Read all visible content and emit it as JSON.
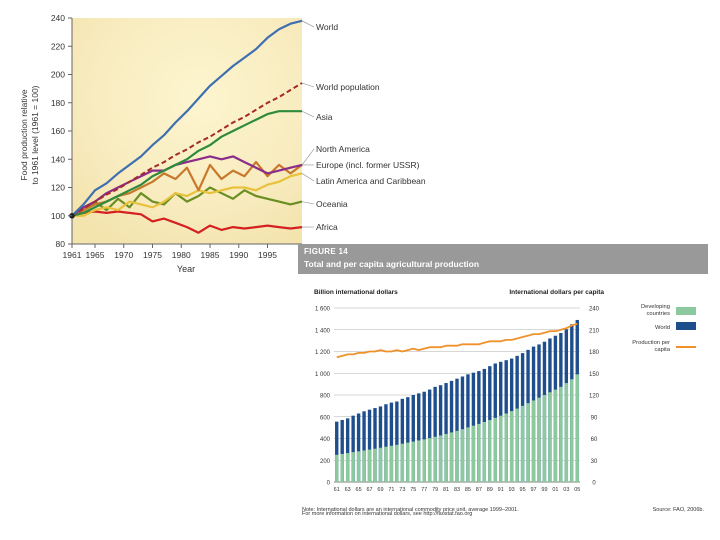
{
  "chart_data": [
    {
      "type": "line",
      "title": "",
      "xlabel": "Year",
      "ylabel_line1": "Food production relative",
      "ylabel_line2": "to 1961 level (1961 = 100)",
      "x": [
        1961,
        1963,
        1965,
        1967,
        1969,
        1971,
        1973,
        1975,
        1977,
        1979,
        1981,
        1983,
        1985,
        1987,
        1989,
        1991,
        1993,
        1995,
        1997,
        1999,
        2001
      ],
      "xlim": [
        1961,
        2001
      ],
      "ylim": [
        80,
        240
      ],
      "x_ticks": [
        {
          "value": 1961,
          "label": "1961"
        },
        {
          "value": 1965,
          "label": "1965"
        },
        {
          "value": 1970,
          "label": "1970"
        },
        {
          "value": 1975,
          "label": "1975"
        },
        {
          "value": 1980,
          "label": "1980"
        },
        {
          "value": 1985,
          "label": "1985"
        },
        {
          "value": 1990,
          "label": "1990"
        },
        {
          "value": 1995,
          "label": "1995"
        }
      ],
      "y_ticks": [
        80,
        100,
        120,
        140,
        160,
        180,
        200,
        220,
        240
      ],
      "series": [
        {
          "name": "World",
          "color": "#3f6fb0",
          "dashed": false,
          "values": [
            100,
            108,
            118,
            123,
            130,
            136,
            142,
            150,
            157,
            166,
            174,
            183,
            192,
            199,
            206,
            212,
            218,
            226,
            232,
            236,
            238
          ]
        },
        {
          "name": "World population",
          "color": "#a52a2a",
          "dashed": true,
          "values": [
            100,
            105,
            110,
            115,
            119,
            124,
            129,
            134,
            138,
            143,
            147,
            152,
            156,
            161,
            166,
            170,
            175,
            180,
            184,
            189,
            194
          ]
        },
        {
          "name": "Asia",
          "color": "#2e8b3c",
          "dashed": false,
          "values": [
            100,
            102,
            106,
            110,
            114,
            118,
            122,
            128,
            132,
            136,
            140,
            146,
            150,
            156,
            160,
            164,
            168,
            172,
            174,
            174,
            174
          ]
        },
        {
          "name": "North America",
          "color": "#c8782c",
          "dashed": false,
          "values": [
            100,
            104,
            108,
            110,
            114,
            116,
            120,
            124,
            130,
            126,
            134,
            118,
            136,
            126,
            132,
            128,
            138,
            128,
            136,
            130,
            136
          ]
        },
        {
          "name": "Europe (incl. former USSR)",
          "color": "#8a2c8a",
          "dashed": false,
          "values": [
            100,
            106,
            110,
            116,
            120,
            124,
            128,
            132,
            132,
            136,
            138,
            140,
            142,
            140,
            142,
            138,
            134,
            130,
            132,
            134,
            136
          ]
        },
        {
          "name": "Latin America and Caribbean",
          "color": "#e8c23c",
          "dashed": false,
          "values": [
            100,
            100,
            104,
            106,
            104,
            110,
            108,
            106,
            110,
            116,
            114,
            118,
            116,
            118,
            120,
            120,
            118,
            122,
            124,
            128,
            130
          ]
        },
        {
          "name": "Oceania",
          "color": "#6b8e23",
          "dashed": false,
          "values": [
            100,
            104,
            110,
            104,
            112,
            106,
            116,
            110,
            108,
            116,
            110,
            114,
            120,
            116,
            112,
            118,
            114,
            112,
            110,
            108,
            110
          ]
        },
        {
          "name": "Africa",
          "color": "#d42020",
          "dashed": false,
          "values": [
            100,
            102,
            103,
            102,
            103,
            102,
            101,
            96,
            98,
            95,
            92,
            88,
            93,
            90,
            92,
            91,
            92,
            93,
            92,
            91,
            92
          ]
        }
      ]
    },
    {
      "type": "bar",
      "figure_label": "FIGURE 14",
      "title": "Total and per capita agricultural production",
      "left_axis_title": "Billion international dollars",
      "right_axis_title": "International dollars per capita",
      "ylim_left": [
        0,
        1600
      ],
      "ylim_right": [
        0,
        240
      ],
      "y_ticks_left": [
        {
          "value": 0,
          "label": "0"
        },
        {
          "value": 200,
          "label": "200"
        },
        {
          "value": 400,
          "label": "400"
        },
        {
          "value": 600,
          "label": "600"
        },
        {
          "value": 800,
          "label": "800"
        },
        {
          "value": 1000,
          "label": "1 000"
        },
        {
          "value": 1200,
          "label": "1 200"
        },
        {
          "value": 1400,
          "label": "1 400"
        },
        {
          "value": 1600,
          "label": "1 600"
        }
      ],
      "y_ticks_right": [
        0,
        30,
        60,
        90,
        120,
        150,
        180,
        210,
        240
      ],
      "categories": [
        "61",
        "62",
        "63",
        "64",
        "65",
        "66",
        "67",
        "68",
        "69",
        "70",
        "71",
        "72",
        "73",
        "74",
        "75",
        "76",
        "77",
        "78",
        "79",
        "80",
        "81",
        "82",
        "83",
        "84",
        "85",
        "86",
        "87",
        "88",
        "89",
        "90",
        "91",
        "92",
        "93",
        "94",
        "95",
        "96",
        "97",
        "98",
        "99",
        "00",
        "01",
        "02",
        "03",
        "04",
        "05"
      ],
      "x_tick_labels": [
        "61",
        "63",
        "65",
        "67",
        "69",
        "71",
        "73",
        "75",
        "77",
        "79",
        "81",
        "83",
        "85",
        "87",
        "89",
        "91",
        "93",
        "95",
        "97",
        "99",
        "01",
        "03",
        "05"
      ],
      "series": [
        {
          "name": "World",
          "color": "#1f4e8c",
          "axis": "left",
          "kind": "bar",
          "values": [
            555,
            570,
            585,
            610,
            630,
            650,
            665,
            680,
            695,
            715,
            730,
            740,
            765,
            780,
            800,
            815,
            830,
            850,
            875,
            890,
            910,
            930,
            950,
            970,
            990,
            1005,
            1020,
            1040,
            1065,
            1090,
            1105,
            1120,
            1135,
            1160,
            1185,
            1215,
            1245,
            1265,
            1290,
            1320,
            1345,
            1370,
            1405,
            1450,
            1490
          ]
        },
        {
          "name": "Developing countries",
          "color": "#8cc99f",
          "axis": "left",
          "kind": "bar",
          "values": [
            250,
            258,
            266,
            275,
            282,
            290,
            298,
            306,
            315,
            324,
            333,
            342,
            352,
            362,
            372,
            382,
            392,
            404,
            416,
            428,
            442,
            456,
            470,
            486,
            502,
            518,
            534,
            552,
            570,
            590,
            610,
            630,
            652,
            675,
            700,
            725,
            750,
            775,
            800,
            825,
            850,
            875,
            910,
            945,
            990
          ]
        },
        {
          "name": "Production per capita",
          "color": "#f0922b",
          "axis": "right",
          "kind": "line",
          "values": [
            172,
            174,
            176,
            176,
            178,
            178,
            180,
            180,
            182,
            180,
            180,
            182,
            180,
            182,
            184,
            182,
            184,
            186,
            186,
            186,
            188,
            188,
            188,
            190,
            190,
            190,
            190,
            192,
            194,
            194,
            194,
            196,
            196,
            198,
            200,
            202,
            204,
            204,
            206,
            208,
            208,
            210,
            212,
            216,
            218
          ]
        }
      ],
      "legend": [
        {
          "label": "Developing countries",
          "series": "Developing countries"
        },
        {
          "label": "World",
          "series": "World"
        },
        {
          "label": "Production per capita",
          "series": "Production per capita"
        }
      ],
      "note_line1": "Note: International dollars are an international commodity price unit, average 1999–2001.",
      "note_line2": "For more information on international dollars, see http://faostat.fao.org",
      "source": "Source: FAO, 2006b."
    }
  ]
}
